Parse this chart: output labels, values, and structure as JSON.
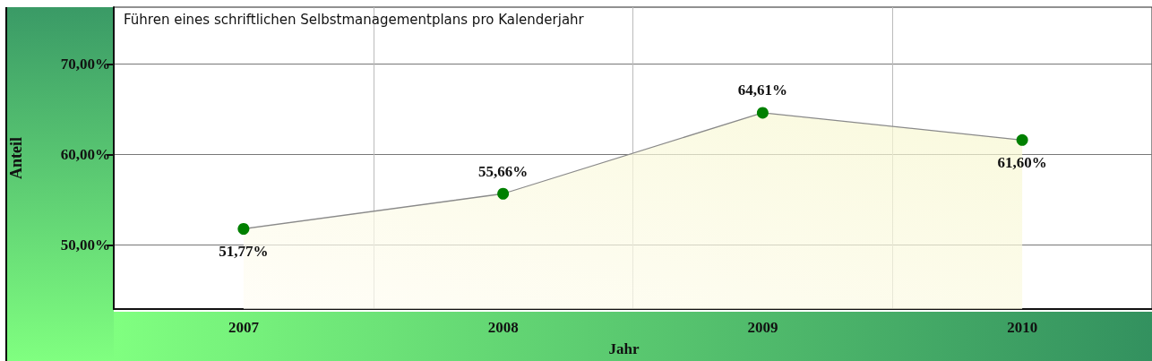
{
  "chart_data": {
    "type": "area",
    "title": "Führen eines schriftlichen Selbstmanagementplans pro Kalenderjahr",
    "xlabel": "Jahr",
    "ylabel": "Anteil",
    "categories": [
      "2007",
      "2008",
      "2009",
      "2010"
    ],
    "series": [
      {
        "color": "#008000",
        "values": [
          51.77,
          55.66,
          64.61,
          61.6
        ],
        "value_labels": [
          "51,77%",
          "55,66%",
          "64,61%",
          "61,60%"
        ]
      }
    ],
    "ylim": [
      42.9,
      76.3
    ],
    "yticks": [
      {
        "value": 50,
        "label": "50,00%"
      },
      {
        "value": 60,
        "label": "60,00%"
      },
      {
        "value": 70,
        "label": "70,00%"
      }
    ],
    "grid": true,
    "marker": "circle",
    "line_style": "solid"
  }
}
